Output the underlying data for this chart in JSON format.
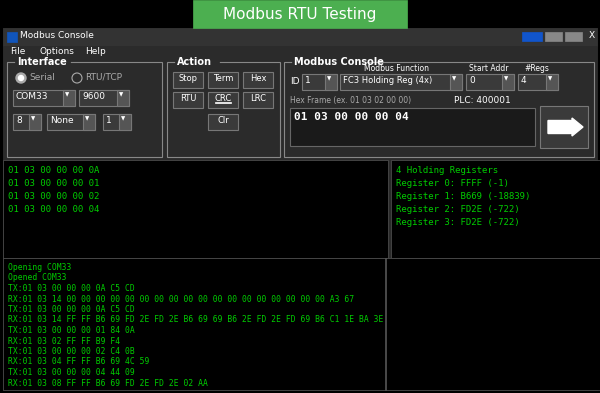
{
  "title": "Modbus RTU Testing",
  "title_bg": "#4CAF50",
  "title_color": "#ffffff",
  "window_title": "Modbus Console",
  "green_text": "#00cc00",
  "menu_items": [
    "File",
    "Options",
    "Help"
  ],
  "interface_label": "Interface",
  "serial_label": "Serial",
  "rtutcp_label": "RTU/TCP",
  "com_value": "COM33",
  "baud_value": "9600",
  "bits_value": "8",
  "parity_value": "None",
  "stop_value": "1",
  "action_label": "Action",
  "btn_stop": "Stop",
  "btn_term": "Term",
  "btn_hex": "Hex",
  "btn_rtu": "RTU",
  "btn_crc": "CRC",
  "btn_lrc": "LRC",
  "btn_clr": "Clr",
  "modbus_console_label": "Modbus Console",
  "modbus_function_label": "Modbus Function",
  "start_addr_label": "Start Addr",
  "nregs_label": "#Regs",
  "id_label": "ID",
  "id_value": "1",
  "fc_value": "FC3 Holding Reg (4x)",
  "addr_value": "0",
  "regs_value": "4",
  "hex_frame_label": "Hex Frame (ex. 01 03 02 00 00)",
  "plc_label": "PLC: 400001",
  "hex_frame_value": "01 03 00 00 00 04",
  "top_left_lines": [
    "01 03 00 00 00 0A",
    "01 03 00 00 00 01",
    "01 03 00 00 00 02",
    "01 03 00 00 00 04"
  ],
  "top_right_lines": [
    "4 Holding Registers",
    "Register 0: FFFF (-1)",
    "Register 1: B669 (-18839)",
    "Register 2: FD2E (-722)",
    "Register 3: FD2E (-722)"
  ],
  "bottom_lines": [
    "Opening COM33",
    "Opened COM33",
    "TX:01 03 00 00 00 0A C5 CD",
    "RX:01 03 14 00 00 00 00 00 00 00 00 00 00 00 00 00 00 00 00 00 00 A3 67",
    "TX:01 03 00 00 00 0A C5 CD",
    "RX:01 03 14 FF FF B6 69 FD 2E FD 2E B6 69 69 B6 2E FD 2E FD 69 B6 C1 1E BA 3E",
    "TX:01 03 00 00 00 01 84 0A",
    "RX:01 03 02 FF FF B9 F4",
    "TX:01 03 00 00 00 02 C4 0B",
    "RX:01 03 04 FF FF B6 69 4C 59",
    "TX:01 03 00 00 00 04 44 09",
    "RX:01 03 08 FF FF B6 69 FD 2E FD 2E 02 AA"
  ],
  "blue_btn_color": "#1155cc",
  "gray_btn_color": "#888888",
  "figsize": [
    6.0,
    3.93
  ],
  "dpi": 100
}
